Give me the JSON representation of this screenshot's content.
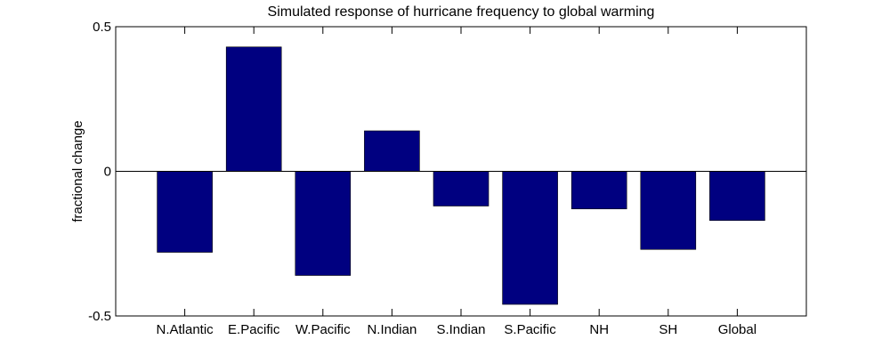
{
  "chart_data": {
    "type": "bar",
    "title": "Simulated response of hurricane frequency to global warming",
    "xlabel": "",
    "ylabel": "fractional change",
    "ylim": [
      -0.5,
      0.5
    ],
    "yticks": [
      {
        "value": 0.5,
        "label": "0.5"
      },
      {
        "value": 0,
        "label": "0"
      },
      {
        "value": -0.5,
        "label": "-0.5"
      }
    ],
    "categories": [
      "N.Atlantic",
      "E.Pacific",
      "W.Pacific",
      "N.Indian",
      "S.Indian",
      "S.Pacific",
      "NH",
      "SH",
      "Global"
    ],
    "values": [
      -0.28,
      0.43,
      -0.36,
      0.14,
      -0.12,
      -0.46,
      -0.13,
      -0.27,
      -0.17
    ],
    "bar_color": "#000080",
    "grid": false,
    "legend": "none"
  }
}
